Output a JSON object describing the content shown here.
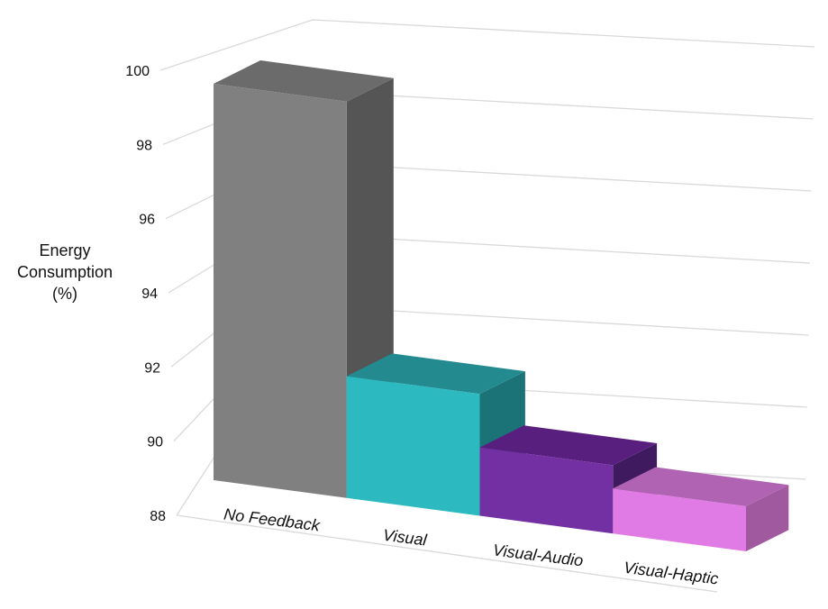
{
  "chart_data": {
    "type": "bar",
    "categories": [
      "No Feedback",
      "Visual",
      "Visual-Audio",
      "Visual-Haptic"
    ],
    "values": [
      100,
      91.8,
      90.2,
      89.5
    ],
    "ylabel": "Energy\nConsumption\n(%)",
    "xlabel": "",
    "ylim": [
      88,
      100
    ],
    "yticks": [
      88,
      90,
      92,
      94,
      96,
      98,
      100
    ],
    "grid": true,
    "colors": [
      {
        "front": "#808080",
        "side": "#555555",
        "top": "#6b6b6b"
      },
      {
        "front": "#2cb9c0",
        "side": "#1b7377",
        "top": "#238a8f"
      },
      {
        "front": "#7230a3",
        "side": "#3f1a5e",
        "top": "#581f7e"
      },
      {
        "front": "#e07be5",
        "side": "#a0589f",
        "top": "#b063b3"
      }
    ]
  }
}
